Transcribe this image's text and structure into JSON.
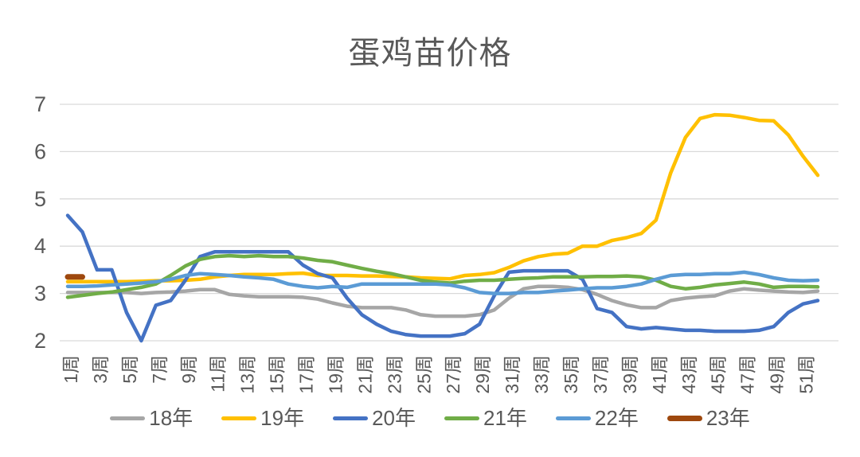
{
  "title": "蛋鸡苗价格",
  "background": "#FFFFFF",
  "axis_color": "#595959",
  "grid_color": "#D9D9D9",
  "chart_data": {
    "type": "line",
    "title": "蛋鸡苗价格",
    "xlabel": "",
    "ylabel": "",
    "ylim": [
      2,
      7
    ],
    "y_ticks": [
      7,
      6,
      5,
      4,
      3,
      2
    ],
    "x_weeks": 52,
    "x_tick_labels": [
      "1周",
      "3周",
      "5周",
      "7周",
      "9周",
      "11周",
      "13周",
      "15周",
      "17周",
      "19周",
      "21周",
      "23周",
      "25周",
      "27周",
      "29周",
      "31周",
      "33周",
      "35周",
      "37周",
      "39周",
      "41周",
      "43周",
      "45周",
      "47周",
      "49周",
      "51周"
    ],
    "grid": "horizontal",
    "legend_position": "bottom",
    "series": [
      {
        "id": "18",
        "name": "18年",
        "color": "#A6A6A6",
        "values": [
          3.02,
          3.02,
          3.02,
          3.02,
          3.02,
          3.0,
          3.02,
          3.03,
          3.05,
          3.08,
          3.08,
          2.98,
          2.95,
          2.93,
          2.93,
          2.93,
          2.92,
          2.88,
          2.8,
          2.73,
          2.7,
          2.7,
          2.7,
          2.65,
          2.55,
          2.52,
          2.52,
          2.52,
          2.55,
          2.65,
          2.9,
          3.1,
          3.15,
          3.15,
          3.13,
          3.08,
          2.98,
          2.85,
          2.76,
          2.7,
          2.7,
          2.85,
          2.9,
          2.93,
          2.95,
          3.05,
          3.1,
          3.07,
          3.05,
          3.03,
          3.02,
          3.05
        ]
      },
      {
        "id": "19",
        "name": "19年",
        "color": "#FFC000",
        "values": [
          3.25,
          3.25,
          3.25,
          3.25,
          3.25,
          3.26,
          3.27,
          3.27,
          3.28,
          3.3,
          3.35,
          3.38,
          3.4,
          3.4,
          3.4,
          3.42,
          3.43,
          3.38,
          3.38,
          3.38,
          3.37,
          3.37,
          3.36,
          3.35,
          3.33,
          3.32,
          3.31,
          3.38,
          3.4,
          3.44,
          3.55,
          3.69,
          3.78,
          3.83,
          3.85,
          4.0,
          4.0,
          4.12,
          4.18,
          4.27,
          4.55,
          5.55,
          6.3,
          6.7,
          6.78,
          6.77,
          6.72,
          6.66,
          6.65,
          6.35,
          5.9,
          5.5
        ]
      },
      {
        "id": "20",
        "name": "20年",
        "color": "#4472C4",
        "values": [
          4.65,
          4.3,
          3.5,
          3.5,
          2.6,
          2.0,
          2.75,
          2.85,
          3.28,
          3.78,
          3.88,
          3.88,
          3.88,
          3.88,
          3.88,
          3.88,
          3.6,
          3.42,
          3.33,
          2.9,
          2.55,
          2.35,
          2.2,
          2.13,
          2.1,
          2.1,
          2.1,
          2.15,
          2.35,
          2.95,
          3.45,
          3.48,
          3.48,
          3.48,
          3.48,
          3.3,
          2.68,
          2.6,
          2.3,
          2.25,
          2.28,
          2.25,
          2.22,
          2.22,
          2.2,
          2.2,
          2.2,
          2.22,
          2.3,
          2.6,
          2.78,
          2.85
        ]
      },
      {
        "id": "21",
        "name": "21年",
        "color": "#70AD47",
        "values": [
          2.92,
          2.96,
          3.0,
          3.03,
          3.08,
          3.13,
          3.2,
          3.38,
          3.58,
          3.72,
          3.78,
          3.8,
          3.78,
          3.8,
          3.78,
          3.78,
          3.75,
          3.7,
          3.67,
          3.6,
          3.53,
          3.47,
          3.42,
          3.35,
          3.28,
          3.24,
          3.22,
          3.26,
          3.28,
          3.28,
          3.3,
          3.32,
          3.33,
          3.35,
          3.35,
          3.35,
          3.36,
          3.36,
          3.37,
          3.35,
          3.28,
          3.15,
          3.1,
          3.13,
          3.18,
          3.21,
          3.24,
          3.2,
          3.13,
          3.15,
          3.15,
          3.14
        ]
      },
      {
        "id": "22",
        "name": "22年",
        "color": "#5B9BD5",
        "values": [
          3.15,
          3.15,
          3.16,
          3.18,
          3.2,
          3.22,
          3.25,
          3.3,
          3.38,
          3.42,
          3.4,
          3.38,
          3.35,
          3.33,
          3.3,
          3.2,
          3.15,
          3.12,
          3.15,
          3.13,
          3.2,
          3.2,
          3.2,
          3.2,
          3.2,
          3.2,
          3.18,
          3.12,
          3.02,
          3.0,
          3.0,
          3.02,
          3.02,
          3.05,
          3.07,
          3.1,
          3.12,
          3.12,
          3.15,
          3.2,
          3.3,
          3.38,
          3.4,
          3.4,
          3.42,
          3.42,
          3.45,
          3.4,
          3.33,
          3.28,
          3.27,
          3.28
        ]
      },
      {
        "id": "23",
        "name": "23年",
        "color": "#9E480E",
        "thick": true,
        "values": [
          3.35,
          3.35
        ]
      }
    ]
  }
}
